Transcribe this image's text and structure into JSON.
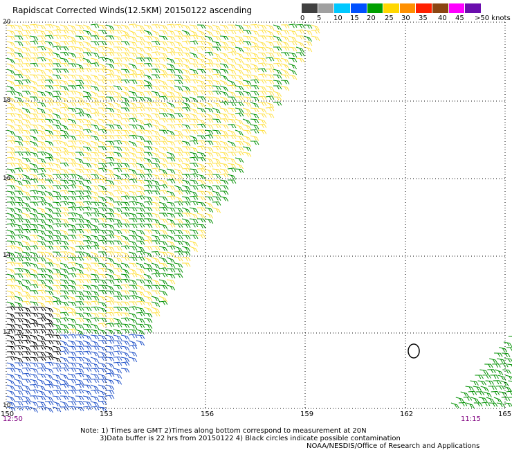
{
  "title": "Rapidscat Corrected Winds(12.5KM) 20150122 ascending",
  "legend": {
    "units_label": ">50 knots",
    "tick_labels": [
      "0",
      "5",
      "10",
      "15",
      "20",
      "25",
      "30",
      "35",
      "40",
      "45"
    ],
    "colors": [
      "#404040",
      "#a0a0a0",
      "#00c8ff",
      "#0050ff",
      "#00a000",
      "#ffd700",
      "#ff9000",
      "#ff2000",
      "#8b4513",
      "#ff00ff",
      "#6a0dad"
    ]
  },
  "map": {
    "lat_labels": [
      "20",
      "18",
      "16",
      "14",
      "12",
      "10"
    ],
    "lon_labels": [
      "150",
      "153",
      "156",
      "159",
      "162",
      "165"
    ],
    "start_time": "12:50",
    "end_time": "11:15",
    "wind_colors": {
      "black": "#000000",
      "blue": "#1e50c8",
      "green": "#009000",
      "yellow": "#ffe040"
    }
  },
  "notes": {
    "line1": "Note: 1) Times are GMT 2)Times along bottom correspond to measurement at 20N",
    "line2": "3)Data buffer is 22 hrs from 20150122 4) Black circles indicate possible contamination",
    "line3": "NOAA/NESDIS/Office of Research and Applications"
  }
}
